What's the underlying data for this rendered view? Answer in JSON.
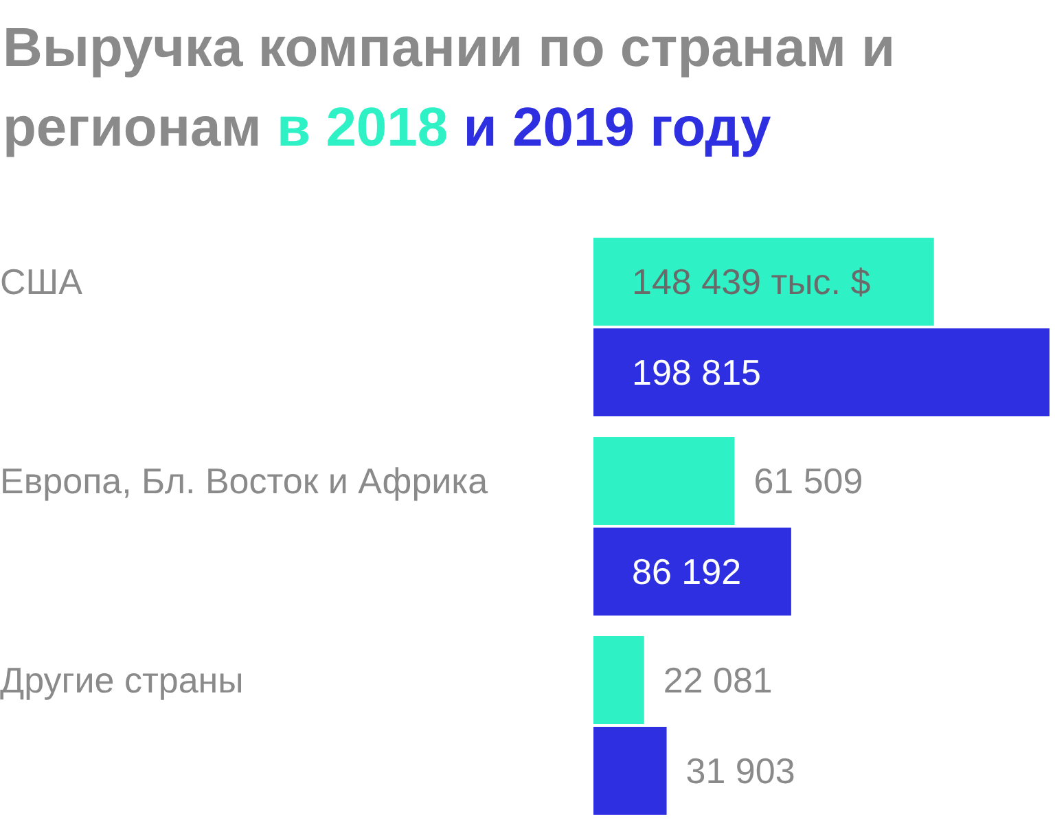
{
  "chart_data": {
    "type": "bar",
    "orientation": "horizontal",
    "title": "Выручка компании по странам и регионам",
    "categories": [
      "США",
      "Европа, Бл. Восток и Африка",
      "Другие страны"
    ],
    "series": [
      {
        "name": "в 2018",
        "color": "#2ef2c6",
        "values": [
          148439,
          61509,
          22081
        ],
        "value_labels": [
          "148 439 тыс. $",
          "61 509",
          "22 081"
        ]
      },
      {
        "name": "и 2019 году",
        "color": "#2d2fe0",
        "values": [
          198815,
          86192,
          31903
        ],
        "value_labels": [
          "198 815",
          "86 192",
          "31 903"
        ]
      }
    ],
    "legend": "top left"
  }
}
